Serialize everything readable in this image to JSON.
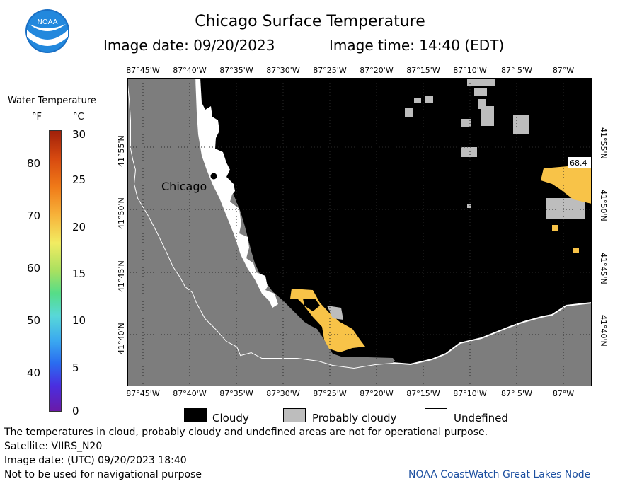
{
  "header": {
    "title": "Chicago Surface Temperature",
    "image_date": "Image date: 09/20/2023",
    "image_time": "Image time: 14:40 (EDT)",
    "logo_text": "NOAA"
  },
  "map": {
    "lon_labels": [
      "87°45'W",
      "87°40'W",
      "87°35'W",
      "87°30'W",
      "87°25'W",
      "87°20'W",
      "87°15'W",
      "87°10'W",
      "87° 5'W",
      "87°W"
    ],
    "lat_labels": [
      "41°55'N",
      "41°50'N",
      "41°45'N",
      "41°40'N"
    ],
    "city_label": "Chicago",
    "buoy_value": "68.4",
    "colors": {
      "land": "#7d7d7d",
      "cloudy": "#000000",
      "probably_cloudy": "#bdbdbd",
      "undefined": "#ffffff",
      "warm_water": "#f8c348"
    }
  },
  "legend": {
    "title": "Water Temperature",
    "unit_f": "°F",
    "unit_c": "°C",
    "f_ticks": [
      "80",
      "70",
      "60",
      "50",
      "40"
    ],
    "c_ticks": [
      "30",
      "25",
      "20",
      "15",
      "10",
      "5",
      "0"
    ]
  },
  "key": {
    "cloudy": "Cloudy",
    "probably_cloudy": "Probably cloudy",
    "undefined": "Undefined"
  },
  "footer": {
    "note": "The temperatures in cloud, probably cloudy and undefined areas are not for operational purpose.",
    "satellite": "Satellite: VIIRS_N20",
    "utc_date": "Image date: (UTC) 09/20/2023  18:40",
    "nav_warning": "Not to be used for navigational purpose",
    "credit": "NOAA CoastWatch Great Lakes Node"
  }
}
